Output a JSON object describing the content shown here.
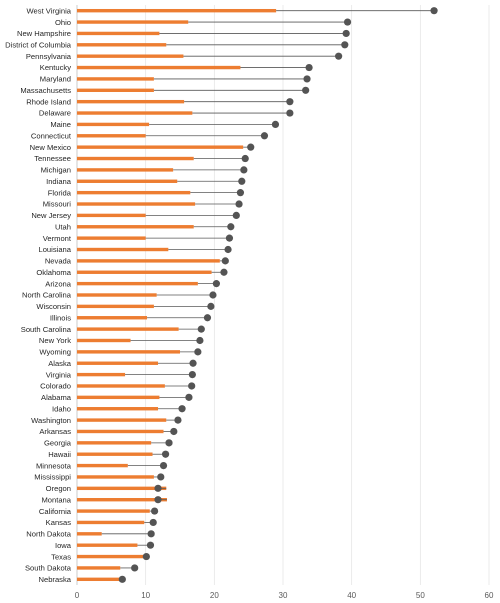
{
  "chart_data": {
    "type": "bar",
    "orientation": "horizontal",
    "categories": [
      "West Virginia",
      "Ohio",
      "New Hampshire",
      "District of Columbia",
      "Pennsylvania",
      "Kentucky",
      "Maryland",
      "Massachusetts",
      "Rhode Island",
      "Delaware",
      "Maine",
      "Connecticut",
      "New Mexico",
      "Tennessee",
      "Michigan",
      "Indiana",
      "Florida",
      "Missouri",
      "New Jersey",
      "Utah",
      "Vermont",
      "Louisiana",
      "Nevada",
      "Oklahoma",
      "Arizona",
      "North Carolina",
      "Wisconsin",
      "Illinois",
      "South Carolina",
      "New York",
      "Wyoming",
      "Alaska",
      "Virginia",
      "Colorado",
      "Alabama",
      "Idaho",
      "Washington",
      "Arkansas",
      "Georgia",
      "Hawaii",
      "Minnesota",
      "Mississippi",
      "Oregon",
      "Montana",
      "California",
      "Kansas",
      "North Dakota",
      "Iowa",
      "Texas",
      "South Dakota",
      "Nebraska"
    ],
    "series": [
      {
        "values": [
          29,
          16.2,
          12,
          13,
          15.5,
          23.8,
          11.2,
          11.2,
          15.6,
          16.8,
          10.5,
          10,
          24.2,
          17,
          14,
          14.6,
          16.5,
          17.2,
          10,
          17,
          10,
          13.3,
          20.8,
          19.6,
          17.6,
          11.6,
          11.2,
          10.2,
          14.8,
          7.8,
          15,
          11.8,
          7,
          12.8,
          12,
          11.8,
          13,
          12.6,
          10.8,
          11,
          7.4,
          11.2,
          13,
          13.1,
          10.6,
          9.8,
          3.6,
          8.8,
          9.8,
          6.3,
          6.8
        ]
      },
      {
        "values": [
          52,
          39.4,
          39.2,
          39,
          38.1,
          33.8,
          33.5,
          33.3,
          31,
          31,
          28.9,
          27.3,
          25.3,
          24.5,
          24.3,
          24,
          23.8,
          23.6,
          23.2,
          22.4,
          22.2,
          22,
          21.6,
          21.4,
          20.3,
          19.8,
          19.5,
          19,
          18.1,
          17.9,
          17.6,
          16.9,
          16.8,
          16.7,
          16.3,
          15.3,
          14.7,
          14.1,
          13.4,
          12.9,
          12.6,
          12.2,
          11.8,
          11.8,
          11.3,
          11.1,
          10.8,
          10.7,
          10.1,
          8.4,
          6.6
        ]
      }
    ],
    "xlim": [
      0,
      60
    ],
    "xticks": [
      0,
      10,
      20,
      30,
      40,
      50,
      60
    ],
    "grid": true,
    "legend": "none"
  },
  "colors": {
    "bar": "#ed7d31",
    "dot": "#545454",
    "connector": "#595959",
    "grid": "#e3e3e3"
  }
}
